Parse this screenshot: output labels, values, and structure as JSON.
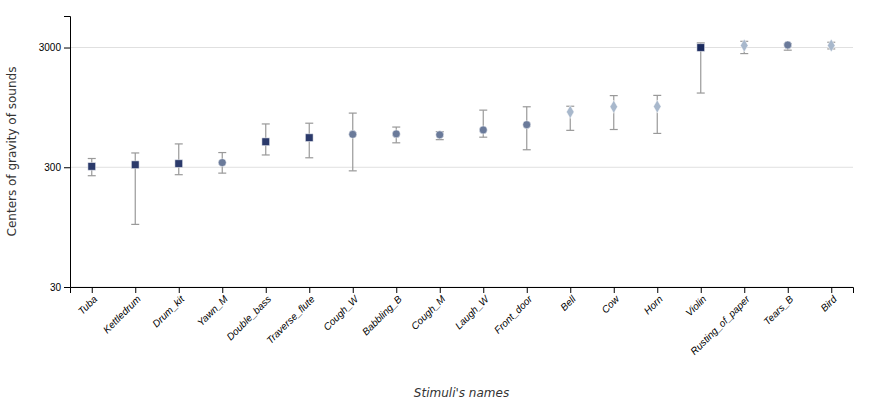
{
  "chart_data": {
    "type": "errorbar",
    "categories": [
      "Tuba",
      "Kettledrum",
      "Drum_kit",
      "Yawn_M",
      "Double_bass",
      "Traverse_flute",
      "Cough_W",
      "Babbling_B",
      "Cough_M",
      "Laugh_W",
      "Front_door",
      "Bell",
      "Cow",
      "Horn",
      "Violin",
      "Rusting_of_paper",
      "Tears_B",
      "Bird"
    ],
    "values": [
      305,
      315,
      322,
      328,
      490,
      530,
      565,
      570,
      560,
      615,
      680,
      870,
      960,
      965,
      3000,
      3120,
      3150,
      3120
    ],
    "lower_bounds": [
      255,
      100,
      260,
      268,
      380,
      360,
      280,
      480,
      510,
      535,
      420,
      610,
      620,
      575,
      1250,
      2670,
      2850,
      2920
    ],
    "upper_bounds": [
      355,
      395,
      470,
      398,
      690,
      700,
      850,
      650,
      595,
      900,
      960,
      970,
      1190,
      1195,
      3280,
      3380,
      3230,
      3320
    ],
    "markers": [
      "square",
      "square",
      "square",
      "circle",
      "square",
      "square",
      "circle",
      "circle",
      "circle",
      "circle",
      "circle",
      "diamond",
      "diamond",
      "diamond",
      "square",
      "diamond",
      "circle",
      "diamond"
    ],
    "colors": [
      "#2b3a6b",
      "#2b3a6b",
      "#2b3a6b",
      "#6a7a9a",
      "#2b3a6b",
      "#2b3a6b",
      "#6a7a9a",
      "#6a7a9a",
      "#6a7a9a",
      "#6a7a9a",
      "#6a7a9a",
      "#a8b8cc",
      "#a8b8cc",
      "#a8b8cc",
      "#1a2a5e",
      "#a8b8cc",
      "#6a7a9a",
      "#a8b8cc"
    ],
    "xlabel": "Stimuli's names",
    "ylabel": "Centers of gravity of sounds",
    "log": "y",
    "ylim": [
      30,
      5500
    ],
    "yticks": [
      30,
      300,
      3000
    ],
    "grid": true
  }
}
